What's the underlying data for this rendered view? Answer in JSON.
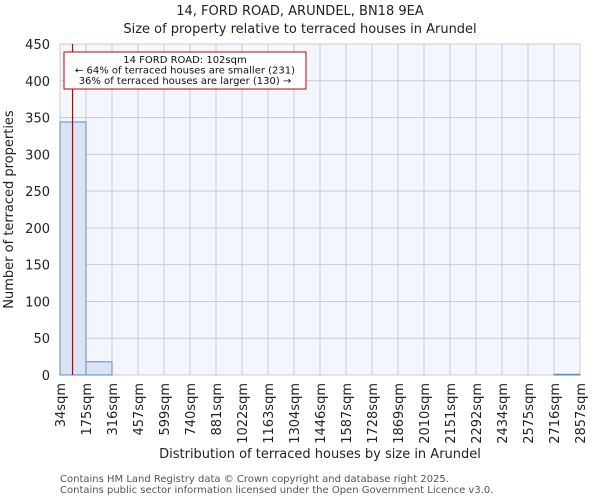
{
  "chart_data": {
    "type": "bar",
    "title": "14, FORD ROAD, ARUNDEL, BN18 9EA",
    "subtitle": "Size of property relative to terraced houses in Arundel",
    "xlabel": "Distribution of terraced houses by size in Arundel",
    "ylabel": "Number of terraced properties",
    "ylim": [
      0,
      450
    ],
    "yticks": [
      0,
      50,
      100,
      150,
      200,
      250,
      300,
      350,
      400,
      450
    ],
    "grid": true,
    "categories": [
      "34sqm",
      "175sqm",
      "316sqm",
      "457sqm",
      "599sqm",
      "740sqm",
      "881sqm",
      "1022sqm",
      "1163sqm",
      "1304sqm",
      "1446sqm",
      "1587sqm",
      "1728sqm",
      "1869sqm",
      "2010sqm",
      "2151sqm",
      "2292sqm",
      "2434sqm",
      "2575sqm",
      "2716sqm",
      "2857sqm"
    ],
    "values": [
      344,
      18,
      0,
      0,
      0,
      0,
      0,
      0,
      0,
      0,
      0,
      0,
      0,
      0,
      0,
      0,
      0,
      0,
      0,
      1
    ],
    "marker": {
      "value_sqm": 102,
      "label": "14 FORD ROAD: 102sqm"
    },
    "annotation": [
      "14 FORD ROAD: 102sqm",
      "← 64% of terraced houses are smaller (231)",
      "36% of terraced houses are larger (130) →"
    ],
    "colors": {
      "bar_fill": "#dae3f3",
      "bar_edge": "#5b8bd0",
      "marker": "#c00000",
      "plot_bg": "#f3f6fd",
      "grid": "#cccccc"
    }
  },
  "footer": {
    "line1": "Contains HM Land Registry data © Crown copyright and database right 2025.",
    "line2": "Contains public sector information licensed under the Open Government Licence v3.0."
  }
}
